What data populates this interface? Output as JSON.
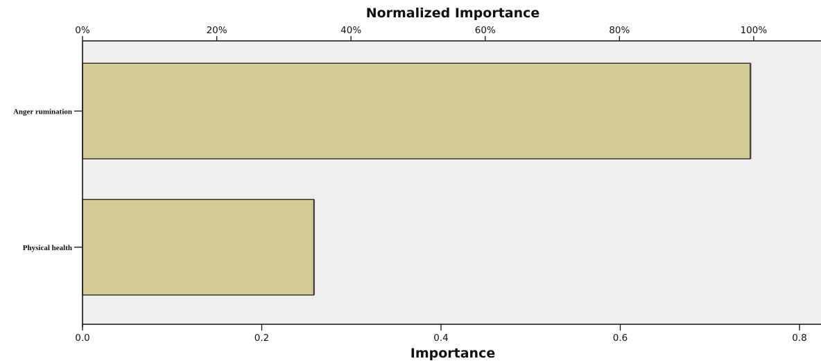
{
  "chart_data": {
    "type": "bar",
    "orientation": "horizontal",
    "title": "",
    "xlabel": "Importance",
    "x2label": "Normalized Importance",
    "ylabel": "",
    "categories": [
      "Anger rumination",
      "Physical health"
    ],
    "values": [
      0.745,
      0.258
    ],
    "normalized_values": [
      100,
      34.6
    ],
    "xlim": [
      0,
      0.8
    ],
    "xticks": [
      "0.0",
      "0.2",
      "0.4",
      "0.6",
      "0.8"
    ],
    "x2lim": [
      0,
      107.4
    ],
    "x2ticks": [
      "0%",
      "20%",
      "40%",
      "60%",
      "80%",
      "100%"
    ],
    "grid": false,
    "legend": "none",
    "colors": {
      "bar_fill": "#d2cb96",
      "bar_edge": "#2a2a2a",
      "plot_background": "#efefef",
      "page_background": "#ffffff"
    }
  }
}
